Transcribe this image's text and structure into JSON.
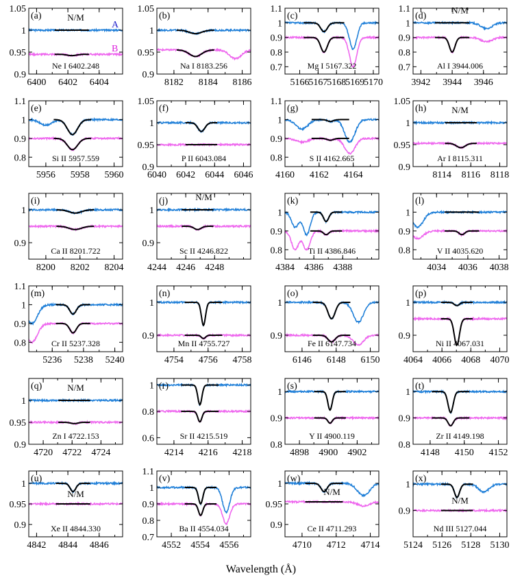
{
  "figure": {
    "xlabel": "Wavelength (Å)"
  },
  "colors": {
    "A": "#1f7fd8",
    "B": "#ee66ee",
    "fit": "#000000"
  },
  "chart_data": [
    {
      "type": "line",
      "panel": "(a)",
      "line": "Ne I 6402.248",
      "xlim": [
        6399.5,
        6405.5
      ],
      "ylim": [
        0.9,
        1.05
      ],
      "xticks": [
        6400,
        6402,
        6404
      ],
      "yticks": [
        0.9,
        0.95,
        1,
        1.05
      ],
      "ytick_labels": [
        "0.9",
        "0.95",
        "1",
        "1.05"
      ],
      "A_level": 1.0,
      "B_level": 0.945,
      "center": 6402.25,
      "A_depth": 0,
      "B_depth": 0.003,
      "width": 0.5,
      "nm": true,
      "show_ab": true,
      "blends": []
    },
    {
      "type": "line",
      "panel": "(b)",
      "line": "Na I 8183.256",
      "xlim": [
        8181,
        8186.5
      ],
      "ylim": [
        0.9,
        1.05
      ],
      "xticks": [
        8182,
        8184,
        8186
      ],
      "yticks": [
        0.9,
        0.95,
        1,
        1.05
      ],
      "ytick_labels": [
        "0.9",
        "0.95",
        "1",
        "1.05"
      ],
      "A_level": 1.0,
      "B_level": 0.955,
      "center": 8183.26,
      "A_depth": 0.008,
      "B_depth": 0.015,
      "width": 0.6,
      "nm": false,
      "show_ab": false,
      "blends": [
        {
          "x": 8185.6,
          "B": 0.02
        }
      ]
    },
    {
      "type": "line",
      "panel": "(c)",
      "line": "Mg I 5167.322",
      "xlim": [
        5165.2,
        5170.3
      ],
      "ylim": [
        0.65,
        1.1
      ],
      "xticks": [
        5166,
        5167,
        5168,
        5169,
        5170
      ],
      "yticks": [
        0.7,
        0.8,
        0.9,
        1,
        1.1
      ],
      "ytick_labels": [
        "0.7",
        "0.8",
        "0.9",
        "1",
        "1.1"
      ],
      "A_level": 1.0,
      "B_level": 0.9,
      "center": 5167.32,
      "A_depth": 0.06,
      "B_depth": 0.1,
      "width": 0.3,
      "nm": false,
      "show_ab": false,
      "blends": [
        {
          "x": 5168.9,
          "A": 0.18,
          "B": 0.2,
          "w": 0.2
        }
      ]
    },
    {
      "type": "line",
      "panel": "(d)",
      "line": "Al I 3944.006",
      "xlim": [
        3941.5,
        3947.5
      ],
      "ylim": [
        0.65,
        1.1
      ],
      "xticks": [
        3942,
        3944,
        3946
      ],
      "yticks": [
        0.7,
        0.8,
        0.9,
        1,
        1.1
      ],
      "ytick_labels": [
        "0.7",
        "0.8",
        "0.9",
        "1",
        "1.1"
      ],
      "A_level": 1.0,
      "B_level": 0.9,
      "center": 3944.0,
      "A_depth": 0,
      "B_depth": 0.1,
      "width": 0.3,
      "nm": true,
      "show_ab": false,
      "blends": [
        {
          "x": 3946.2,
          "A": 0.04,
          "B": 0.03
        }
      ]
    },
    {
      "type": "line",
      "panel": "(e)",
      "line": "Si II 5957.559",
      "xlim": [
        5955,
        5960.5
      ],
      "ylim": [
        0.75,
        1.1
      ],
      "xticks": [
        5956,
        5958,
        5960
      ],
      "yticks": [
        0.8,
        0.9,
        1,
        1.1
      ],
      "ytick_labels": [
        "0.8",
        "0.9",
        "1",
        "1.1"
      ],
      "A_level": 1.0,
      "B_level": 0.9,
      "center": 5957.56,
      "A_depth": 0.08,
      "B_depth": 0.06,
      "width": 0.5,
      "nm": false,
      "show_ab": false,
      "blends": [
        {
          "x": 5956.0,
          "A": 0.03,
          "B": 0.0
        }
      ]
    },
    {
      "type": "line",
      "panel": "(f)",
      "line": "P II 6043.084",
      "xlim": [
        6040,
        6046.5
      ],
      "ylim": [
        0.9,
        1.05
      ],
      "xticks": [
        6040,
        6042,
        6044,
        6046
      ],
      "yticks": [
        0.9,
        0.95,
        1,
        1.05
      ],
      "ytick_labels": [
        "0.9",
        "0.95",
        "1",
        "1.05"
      ],
      "A_level": 1.0,
      "B_level": 0.95,
      "center": 6043.08,
      "A_depth": 0.02,
      "B_depth": 0.0,
      "width": 0.4,
      "nm": false,
      "show_ab": false,
      "blends": []
    },
    {
      "type": "line",
      "panel": "(g)",
      "line": "S II 4162.665",
      "xlim": [
        4160,
        4165.5
      ],
      "ylim": [
        0.75,
        1.1
      ],
      "xticks": [
        4160,
        4162,
        4164
      ],
      "yticks": [
        0.8,
        0.9,
        1,
        1.1
      ],
      "ytick_labels": [
        "0.8",
        "0.9",
        "1",
        "1.1"
      ],
      "A_level": 1.0,
      "B_level": 0.9,
      "center": 4162.66,
      "A_depth": 0.01,
      "B_depth": 0.01,
      "width": 0.3,
      "nm": false,
      "show_ab": false,
      "blends": [
        {
          "x": 4163.8,
          "A": 0.12,
          "B": 0.08,
          "w": 0.3
        },
        {
          "x": 4161.0,
          "A": 0.05,
          "B": 0.02
        }
      ]
    },
    {
      "type": "line",
      "panel": "(h)",
      "line": "Ar I 8115.311",
      "xlim": [
        8112,
        8118.5
      ],
      "ylim": [
        0.9,
        1.05
      ],
      "xticks": [
        8114,
        8116,
        8118
      ],
      "yticks": [
        0.9,
        0.95,
        1,
        1.05
      ],
      "ytick_labels": [
        "0.9",
        "0.95",
        "1",
        "1.05"
      ],
      "A_level": 1.0,
      "B_level": 0.953,
      "center": 8115.31,
      "A_depth": 0,
      "B_depth": 0.01,
      "width": 0.5,
      "nm": true,
      "show_ab": false,
      "blends": []
    },
    {
      "type": "line",
      "panel": "(i)",
      "line": "Ca II 8201.722",
      "xlim": [
        8199,
        8204.5
      ],
      "ylim": [
        0.85,
        1.05
      ],
      "xticks": [
        8200,
        8202,
        8204
      ],
      "yticks": [
        0.9,
        1
      ],
      "ytick_labels": [
        "0.9",
        "1"
      ],
      "A_level": 1.0,
      "B_level": 0.95,
      "center": 8201.72,
      "A_depth": 0.01,
      "B_depth": 0.01,
      "width": 0.6,
      "nm": false,
      "show_ab": false,
      "blends": []
    },
    {
      "type": "line",
      "panel": "(j)",
      "line": "Sc II 4246.822",
      "xlim": [
        4244,
        4250.5
      ],
      "ylim": [
        0.85,
        1.05
      ],
      "xticks": [
        4244,
        4246,
        4248
      ],
      "yticks": [
        0.9,
        1
      ],
      "ytick_labels": [
        "0.9",
        "1"
      ],
      "A_level": 1.0,
      "B_level": 0.95,
      "center": 4246.82,
      "A_depth": 0,
      "B_depth": 0.01,
      "width": 0.4,
      "nm": true,
      "show_ab": false,
      "blends": []
    },
    {
      "type": "line",
      "panel": "(k)",
      "line": "Ti II 4386.846",
      "xlim": [
        4384,
        4390.5
      ],
      "ylim": [
        0.75,
        1.1
      ],
      "xticks": [
        4384,
        4386,
        4388
      ],
      "yticks": [
        0.8,
        0.9,
        1
      ],
      "ytick_labels": [
        "0.8",
        "0.9",
        "1"
      ],
      "A_level": 1.0,
      "B_level": 0.9,
      "center": 4386.85,
      "A_depth": 0.05,
      "B_depth": 0.02,
      "width": 0.3,
      "nm": false,
      "show_ab": false,
      "blends": [
        {
          "x": 4385.5,
          "A": 0.12,
          "B": 0.1,
          "w": 0.25
        },
        {
          "x": 4384.7,
          "A": 0.08,
          "B": 0.1,
          "w": 0.25
        }
      ]
    },
    {
      "type": "line",
      "panel": "(l)",
      "line": "V II 4035.620",
      "xlim": [
        4032.5,
        4038.5
      ],
      "ylim": [
        0.75,
        1.1
      ],
      "xticks": [
        4034,
        4036,
        4038
      ],
      "yticks": [
        0.8,
        0.9,
        1
      ],
      "ytick_labels": [
        "0.8",
        "0.9",
        "1"
      ],
      "A_level": 1.0,
      "B_level": 0.9,
      "center": 4035.62,
      "A_depth": 0.0,
      "B_depth": 0.02,
      "width": 0.3,
      "nm": false,
      "show_ab": false,
      "blends": [
        {
          "x": 4032.8,
          "A": 0.08,
          "B": 0.04
        }
      ]
    },
    {
      "type": "line",
      "panel": "(m)",
      "line": "Cr II 5237.328",
      "xlim": [
        5234.5,
        5240.5
      ],
      "ylim": [
        0.75,
        1.1
      ],
      "xticks": [
        5236,
        5238,
        5240
      ],
      "yticks": [
        0.8,
        0.9,
        1,
        1.1
      ],
      "ytick_labels": [
        "0.8",
        "0.9",
        "1",
        "1.1"
      ],
      "A_level": 1.0,
      "B_level": 0.9,
      "center": 5237.33,
      "A_depth": 0.05,
      "B_depth": 0.05,
      "width": 0.35,
      "nm": false,
      "show_ab": false,
      "blends": [
        {
          "x": 5234.7,
          "A": 0.1,
          "B": 0.1
        }
      ]
    },
    {
      "type": "line",
      "panel": "(n)",
      "line": "Mn II 4755.727",
      "xlim": [
        4753,
        4758.5
      ],
      "ylim": [
        0.85,
        1.05
      ],
      "xticks": [
        4754,
        4756,
        4758
      ],
      "yticks": [
        0.9,
        1
      ],
      "ytick_labels": [
        "0.9",
        "1"
      ],
      "A_level": 1.0,
      "B_level": 0.9,
      "center": 4755.73,
      "A_depth": 0.07,
      "B_depth": 0.01,
      "width": 0.2,
      "nm": false,
      "show_ab": false,
      "blends": []
    },
    {
      "type": "line",
      "panel": "(o)",
      "line": "Fe II 6147.734",
      "xlim": [
        6145,
        6150.5
      ],
      "ylim": [
        0.85,
        1.05
      ],
      "xticks": [
        6146,
        6148,
        6150
      ],
      "yticks": [
        0.9,
        1
      ],
      "ytick_labels": [
        "0.9",
        "1"
      ],
      "A_level": 1.0,
      "B_level": 0.9,
      "center": 6147.73,
      "A_depth": 0.05,
      "B_depth": 0.02,
      "width": 0.35,
      "nm": false,
      "show_ab": false,
      "blends": [
        {
          "x": 6149.3,
          "A": 0.06,
          "B": 0.03,
          "w": 0.3
        }
      ]
    },
    {
      "type": "line",
      "panel": "(p)",
      "line": "Ni II 4067.031",
      "xlim": [
        4064,
        4070.5
      ],
      "ylim": [
        0.85,
        1.05
      ],
      "xticks": [
        4064,
        4066,
        4068,
        4070
      ],
      "yticks": [
        0.9,
        1
      ],
      "ytick_labels": [
        "0.9",
        "1"
      ],
      "A_level": 1.0,
      "B_level": 0.95,
      "center": 4067.03,
      "A_depth": 0.01,
      "B_depth": 0.08,
      "width": 0.3,
      "nm": false,
      "show_ab": false,
      "blends": []
    },
    {
      "type": "line",
      "panel": "(q)",
      "line": "Zn I 4722.153",
      "xlim": [
        4719,
        4725.5
      ],
      "ylim": [
        0.9,
        1.05
      ],
      "xticks": [
        4720,
        4722,
        4724
      ],
      "yticks": [
        0.9,
        0.95,
        1
      ],
      "ytick_labels": [
        "0.9",
        "0.95",
        "1"
      ],
      "A_level": 1.0,
      "B_level": 0.95,
      "center": 4722.15,
      "A_depth": 0,
      "B_depth": 0.003,
      "width": 0.4,
      "nm": true,
      "show_ab": false,
      "blends": []
    },
    {
      "type": "line",
      "panel": "(r)",
      "line": "Sr II 4215.519",
      "xlim": [
        4213,
        4218.5
      ],
      "ylim": [
        0.55,
        1.05
      ],
      "xticks": [
        4214,
        4216,
        4218
      ],
      "yticks": [
        0.6,
        0.8,
        1
      ],
      "ytick_labels": [
        "0.6",
        "0.8",
        "1"
      ],
      "A_level": 1.0,
      "B_level": 0.8,
      "center": 4215.52,
      "A_depth": 0.15,
      "B_depth": 0.08,
      "width": 0.2,
      "nm": false,
      "show_ab": false,
      "blends": []
    },
    {
      "type": "line",
      "panel": "(s)",
      "line": "Y II 4900.119",
      "xlim": [
        4897,
        4903.5
      ],
      "ylim": [
        0.8,
        1.05
      ],
      "xticks": [
        4898,
        4900,
        4902
      ],
      "yticks": [
        0.8,
        0.9,
        1
      ],
      "ytick_labels": [
        "0.8",
        "0.9",
        "1"
      ],
      "A_level": 1.0,
      "B_level": 0.9,
      "center": 4900.12,
      "A_depth": 0.07,
      "B_depth": 0.02,
      "width": 0.25,
      "nm": false,
      "show_ab": false,
      "blends": []
    },
    {
      "type": "line",
      "panel": "(t)",
      "line": "Zr II 4149.198",
      "xlim": [
        4147,
        4152.5
      ],
      "ylim": [
        0.8,
        1.05
      ],
      "xticks": [
        4148,
        4150,
        4152
      ],
      "yticks": [
        0.8,
        0.9,
        1
      ],
      "ytick_labels": [
        "0.8",
        "0.9",
        "1"
      ],
      "A_level": 1.0,
      "B_level": 0.9,
      "center": 4149.2,
      "A_depth": 0.08,
      "B_depth": 0.03,
      "width": 0.25,
      "nm": false,
      "show_ab": false,
      "blends": []
    },
    {
      "type": "line",
      "panel": "(u)",
      "line": "Xe II 4844.330",
      "xlim": [
        4841.5,
        4847.5
      ],
      "ylim": [
        0.87,
        1.03
      ],
      "xticks": [
        4842,
        4844,
        4846
      ],
      "yticks": [
        0.9,
        0.95,
        1
      ],
      "ytick_labels": [
        "0.9",
        "0.95",
        "1"
      ],
      "A_level": 1.0,
      "B_level": 0.95,
      "center": 4844.33,
      "A_depth": 0.02,
      "B_depth": 0,
      "width": 0.3,
      "nm": true,
      "show_ab": false,
      "blends": []
    },
    {
      "type": "line",
      "panel": "(v)",
      "line": "Ba II 4554.034",
      "xlim": [
        4551,
        4557.5
      ],
      "ylim": [
        0.7,
        1.1
      ],
      "xticks": [
        4552,
        4554,
        4556
      ],
      "yticks": [
        0.7,
        0.8,
        0.9,
        1,
        1.1
      ],
      "ytick_labels": [
        "0.7",
        "0.8",
        "0.9",
        "1",
        "1.1"
      ],
      "A_level": 1.0,
      "B_level": 0.9,
      "center": 4554.03,
      "A_depth": 0.1,
      "B_depth": 0.07,
      "width": 0.25,
      "nm": false,
      "show_ab": false,
      "blends": [
        {
          "x": 4555.8,
          "A": 0.15,
          "B": 0.12,
          "w": 0.25
        }
      ]
    },
    {
      "type": "line",
      "panel": "(w)",
      "line": "Ce II 4711.293",
      "xlim": [
        4709,
        4714.5
      ],
      "ylim": [
        0.87,
        1.03
      ],
      "xticks": [
        4710,
        4712,
        4714
      ],
      "yticks": [
        0.9,
        0.95,
        1
      ],
      "ytick_labels": [
        "0.9",
        "0.95",
        "1"
      ],
      "A_level": 1.0,
      "B_level": 0.955,
      "center": 4711.29,
      "A_depth": 0.02,
      "B_depth": 0,
      "width": 0.3,
      "nm": true,
      "show_ab": false,
      "blends": [
        {
          "x": 4713.6,
          "A": 0.03,
          "B": 0.01
        }
      ]
    },
    {
      "type": "line",
      "panel": "(x)",
      "line": "Nd III 5127.044",
      "xlim": [
        5124,
        5130.5
      ],
      "ylim": [
        0.8,
        1.05
      ],
      "xticks": [
        5124,
        5126,
        5128,
        5130
      ],
      "yticks": [
        0.9,
        1
      ],
      "ytick_labels": [
        "0.9",
        "1"
      ],
      "A_level": 1.0,
      "B_level": 0.9,
      "center": 5127.04,
      "A_depth": 0.05,
      "B_depth": 0,
      "width": 0.3,
      "nm": true,
      "show_ab": false,
      "blends": [
        {
          "x": 5128.9,
          "A": 0.03,
          "B": 0.0
        }
      ]
    }
  ]
}
